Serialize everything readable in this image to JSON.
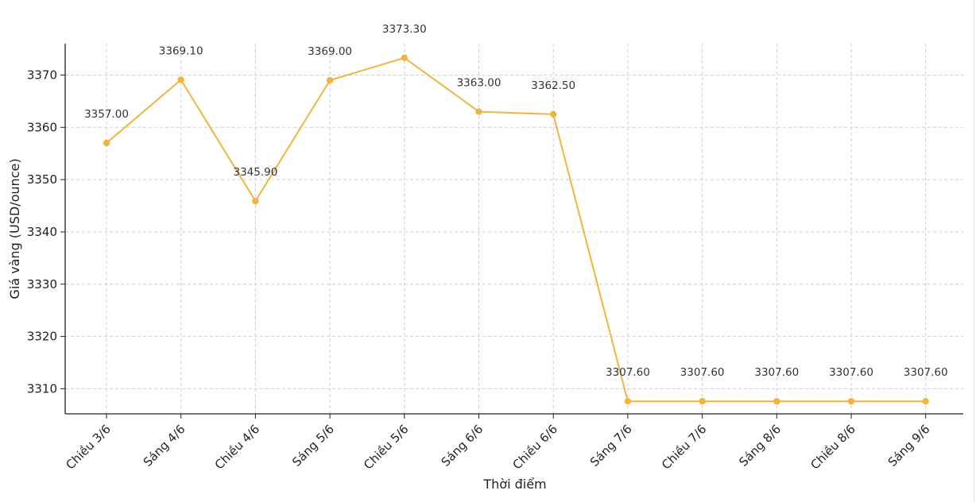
{
  "chart_data": {
    "type": "line",
    "title": "",
    "xlabel": "Thời điểm",
    "ylabel": "Giá vàng (USD/ounce)",
    "categories": [
      "Chiều 3/6",
      "Sáng 4/6",
      "Chiều 4/6",
      "Sáng 5/6",
      "Chiều 5/6",
      "Sáng 6/6",
      "Chiều 6/6",
      "Sáng 7/6",
      "Chiều 7/6",
      "Sáng 8/6",
      "Chiều 8/6",
      "Sáng 9/6"
    ],
    "values": [
      3357.0,
      3369.1,
      3345.9,
      3369.0,
      3373.3,
      3363.0,
      3362.5,
      3307.6,
      3307.6,
      3307.6,
      3307.6,
      3307.6
    ],
    "data_labels": [
      "3357.00",
      "3369.10",
      "3345.90",
      "3369.00",
      "3373.30",
      "3363.00",
      "3362.50",
      "3307.60",
      "3307.60",
      "3307.60",
      "3307.60",
      "3307.60"
    ],
    "yticks": [
      3310,
      3320,
      3330,
      3340,
      3350,
      3360,
      3370
    ],
    "ylim": [
      3305.2,
      3376.0
    ],
    "grid": true,
    "line_color": "#F0B53F"
  }
}
